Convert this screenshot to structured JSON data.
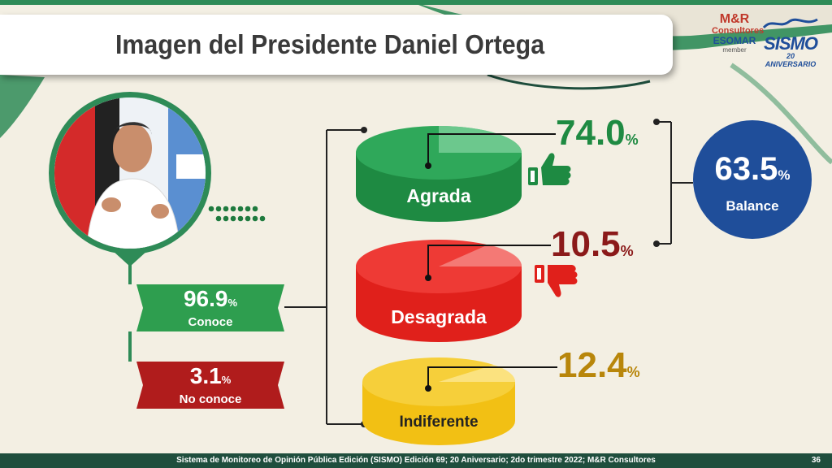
{
  "title": "Imagen del Presidente Daniel Ortega",
  "logos": {
    "mr_line1": "M&R",
    "mr_line2": "Consultores",
    "mr_line3": "ESOMAR",
    "mr_line4": "member",
    "sismo_name": "SISMO",
    "sismo_sub": "20 ANIVERSARIO"
  },
  "colors": {
    "green": "#2e8b57",
    "dark_green": "#1e7a3e",
    "red": "#e0201b",
    "dark_red": "#8b1a1a",
    "yellow": "#f2c014",
    "gold": "#b8860b",
    "blue": "#1f4e9a"
  },
  "icons": [
    "thumbs-up-icon",
    "thumbs-down-icon"
  ],
  "chart_data": {
    "type": "table",
    "awareness": [
      {
        "label": "Conoce",
        "value": 96.9,
        "display": "96.9",
        "unit": "%"
      },
      {
        "label": "No conoce",
        "value": 3.1,
        "display": "3.1",
        "unit": "%"
      }
    ],
    "opinion": [
      {
        "label": "Agrada",
        "value": 74.0,
        "display": "74.0",
        "unit": "%"
      },
      {
        "label": "Desagrada",
        "value": 10.5,
        "display": "10.5",
        "unit": "%"
      },
      {
        "label": "Indiferente",
        "value": 12.4,
        "display": "12.4",
        "unit": "%"
      }
    ],
    "balance": {
      "label": "Balance",
      "value": 63.5,
      "display": "63.5",
      "unit": "%"
    }
  },
  "footer": "Sistema de Monitoreo de Opinión Pública Edición (SISMO) Edición 69; 20 Aniversario; 2do trimestre 2022; M&R Consultores",
  "page_number": "36"
}
